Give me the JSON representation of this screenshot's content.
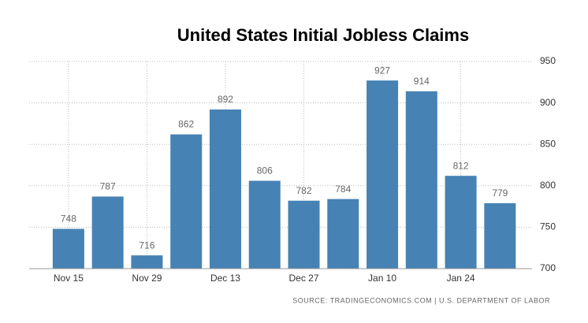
{
  "chart_data": {
    "type": "bar",
    "title": "United States Initial Jobless Claims",
    "categories": [
      "Nov 15",
      null,
      "Nov 29",
      null,
      "Dec 13",
      null,
      "Dec 27",
      null,
      "Jan 10",
      null,
      "Jan 24",
      null
    ],
    "values": [
      748,
      787,
      716,
      862,
      892,
      806,
      782,
      784,
      927,
      914,
      812,
      779
    ],
    "color": "#4682b4",
    "ylim": [
      700,
      950
    ],
    "yticks": [
      700,
      750,
      800,
      850,
      900,
      950
    ],
    "grid": true,
    "source": "SOURCE: TRADINGECONOMICS.COM | U.S. DEPARTMENT OF LABOR"
  }
}
